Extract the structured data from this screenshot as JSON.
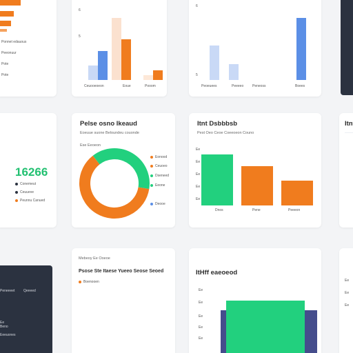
{
  "colors": {
    "orange": "#f07c1e",
    "green": "#22d07e",
    "blue": "#5b8fe6",
    "light_blue": "#c9d9f6",
    "dark_panel": "#2b3240",
    "navy": "#454d8c"
  },
  "row1": {
    "left_items": [
      "Ponnet edauous",
      "Peeonuur",
      "Pote"
    ],
    "chart_a": {
      "axis_ticks": [
        "6",
        "5"
      ],
      "x_labels": [
        "Ceuooeoeon",
        "Eoue",
        "Pooom"
      ]
    },
    "chart_b": {
      "axis_ticks": [
        "6",
        "5"
      ],
      "x_labels": [
        "Peoeuees",
        "Peeeeo",
        "Peneoss",
        "Boees"
      ]
    }
  },
  "kpi_card": {
    "value": "16266",
    "items": [
      {
        "label": "Conemeut",
        "color": "#2b3240"
      },
      {
        "label": "Ceuueve",
        "color": "#2b3240"
      },
      {
        "label": "Peunnu Canued",
        "color": "#f07c1e"
      }
    ]
  },
  "donut_card": {
    "title": "Pelse osno Ikeaud",
    "subtitle": "Eoeuue suone Beloundeu couonde",
    "meta": "Ese Eeoeon",
    "legend": [
      {
        "label": "Eonood",
        "color": "#f07c1e"
      },
      {
        "label": "Ceuoeo",
        "color": "#f07c1e"
      },
      {
        "label": "Dseneed",
        "color": "#22d07e"
      },
      {
        "label": "Eeone",
        "color": "#22d07e"
      },
      {
        "label": "Deooe",
        "color": "#5b8fe6"
      }
    ]
  },
  "bar_card": {
    "title": "Itnt Dsbbbsb",
    "subtitle": "Pest Oeo Ceoe Coeeoeon Couno",
    "ticks": [
      "Ee",
      "Ee",
      "Ee",
      "Ee",
      "Ee"
    ],
    "x_labels": [
      "Dnos",
      "Pene",
      "Peeeon"
    ]
  },
  "row3": {
    "dark_panel_labels": [
      "Peneeeet",
      "Qeeeed",
      "Ee",
      "Beno",
      "Eeeuones"
    ],
    "card_a": {
      "header": "Mebeoy  Ee Ooeoe",
      "subtitle": "Psose Ste Itaese Yueeo Seose Seoed",
      "legend": "Boenooen"
    },
    "card_b": {
      "title": "ItHff eaeoeod",
      "ticks": [
        "Ee",
        "Ee",
        "Ee",
        "Ee",
        "Ee"
      ]
    }
  },
  "chart_data": [
    {
      "type": "bar",
      "categories": [
        "Ceuooeoeon",
        "Eoue",
        "Pooom"
      ],
      "series": [
        {
          "values": [
            1.2,
            5.2,
            0.4
          ]
        },
        {
          "values": [
            2.4,
            3.4,
            0.8
          ]
        }
      ]
    },
    {
      "type": "bar",
      "categories": [
        "Peoeuees",
        "Peeeeo",
        "Peneoss",
        "Boees"
      ],
      "values": [
        2.9,
        1.3,
        0,
        5.2
      ]
    },
    {
      "type": "pie",
      "labels": [
        "orange",
        "green"
      ],
      "values": [
        62,
        38
      ],
      "title": "Pelse osno Ikeaud"
    },
    {
      "type": "bar",
      "categories": [
        "Dnos",
        "Pene",
        "Peeeon"
      ],
      "values": [
        100,
        77,
        49
      ],
      "title": "Itnt Dsbbbsb"
    }
  ]
}
